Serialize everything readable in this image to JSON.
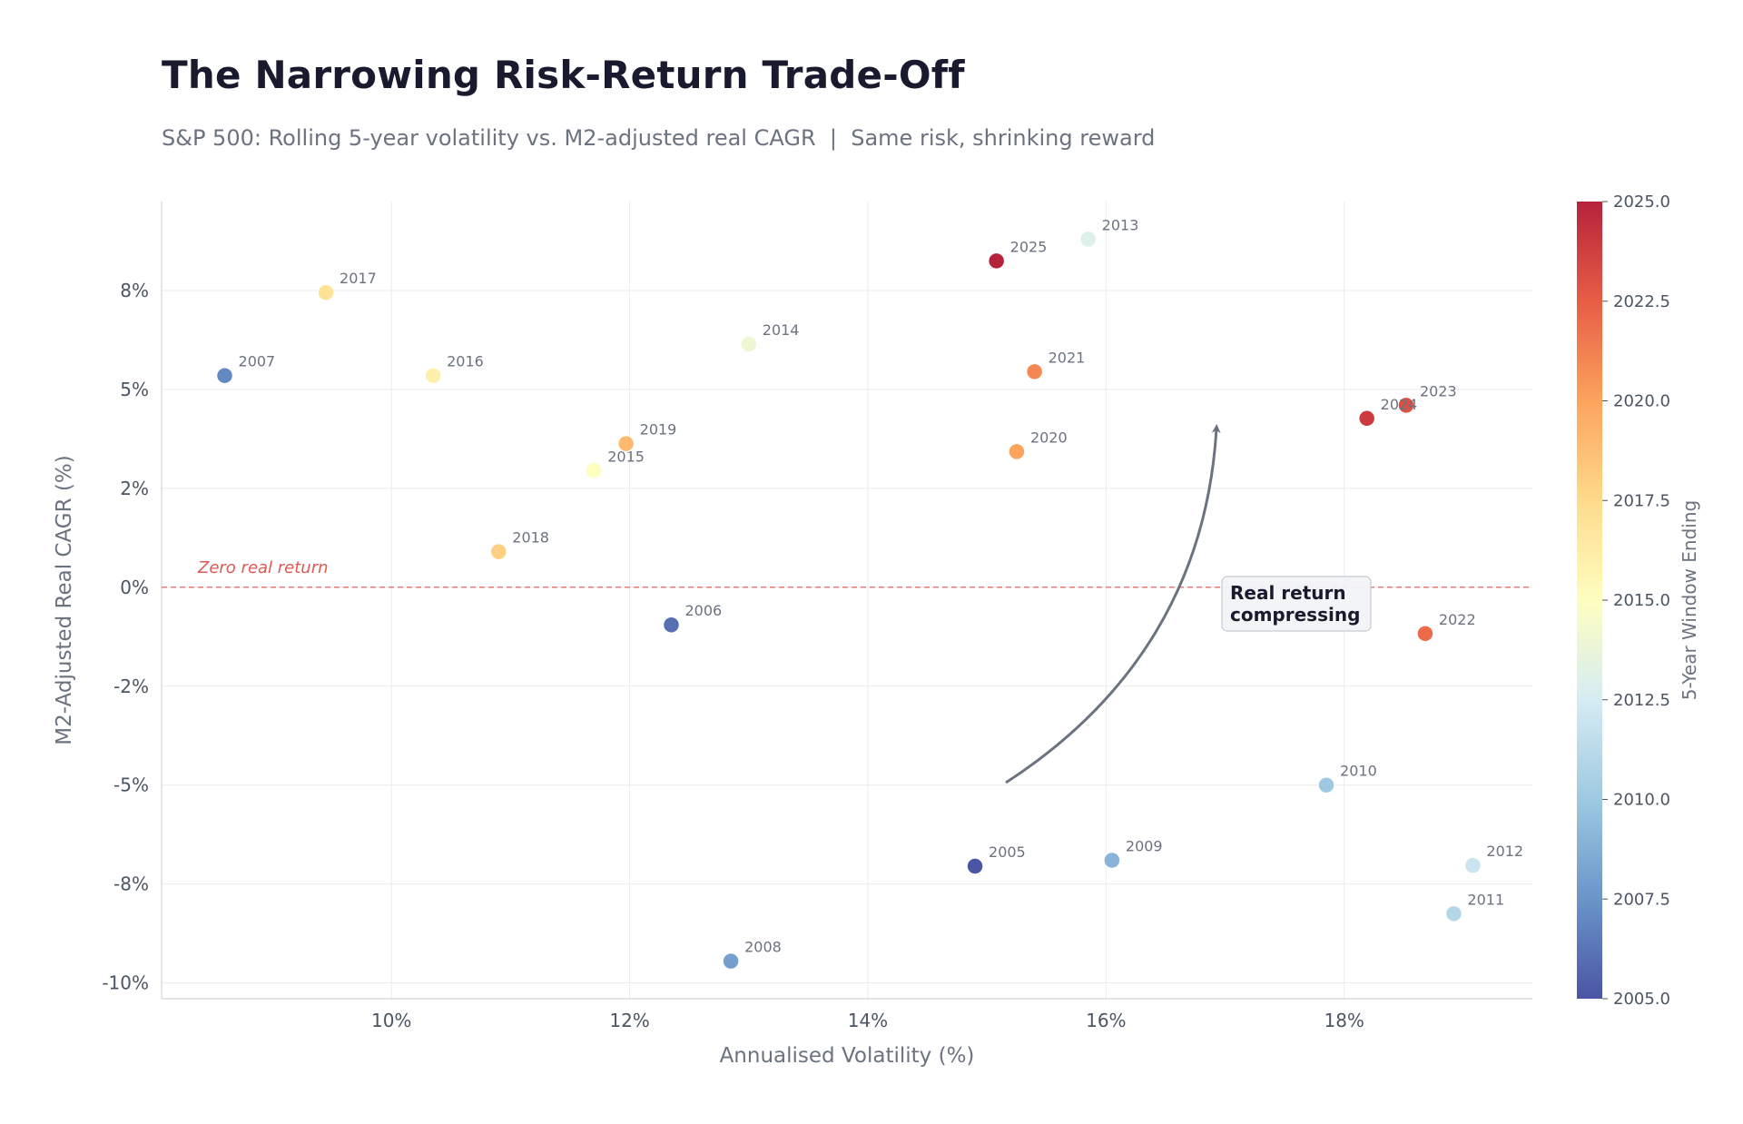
{
  "title": "The Narrowing Risk-Return Trade-Off",
  "subtitle": "S&P 500: Rolling 5-year volatility vs. M2-adjusted real CAGR  |  Same risk, shrinking reward",
  "chart_data": {
    "type": "scatter",
    "xlabel": "Annualised Volatility (%)",
    "ylabel": "M2-Adjusted Real CAGR (%)",
    "xlim": [
      8.07,
      19.58
    ],
    "ylim": [
      -10.4,
      9.75
    ],
    "x_ticks": [
      10,
      12,
      14,
      16,
      18
    ],
    "x_tick_labels": [
      "10%",
      "12%",
      "14%",
      "16%",
      "18%"
    ],
    "y_ticks": [
      -10,
      -7.5,
      -5,
      -2.5,
      0,
      2.5,
      5,
      7.5
    ],
    "y_tick_labels": [
      "-10%",
      "-8%",
      "-5%",
      "-2%",
      "0%",
      "2%",
      "5%",
      "8%"
    ],
    "grid": true,
    "points": [
      {
        "year": 2005,
        "label": "2005",
        "x": 14.9,
        "y": -7.05
      },
      {
        "year": 2006,
        "label": "2006",
        "x": 12.35,
        "y": -0.95
      },
      {
        "year": 2007,
        "label": "2007",
        "x": 8.6,
        "y": 5.35
      },
      {
        "year": 2008,
        "label": "2008",
        "x": 12.85,
        "y": -9.45
      },
      {
        "year": 2009,
        "label": "2009",
        "x": 16.05,
        "y": -6.9
      },
      {
        "year": 2010,
        "label": "2010",
        "x": 17.85,
        "y": -5.0
      },
      {
        "year": 2011,
        "label": "2011",
        "x": 18.92,
        "y": -8.25
      },
      {
        "year": 2012,
        "label": "2012",
        "x": 19.08,
        "y": -7.03
      },
      {
        "year": 2013,
        "label": "2013",
        "x": 15.85,
        "y": 8.8
      },
      {
        "year": 2014,
        "label": "2014",
        "x": 13.0,
        "y": 6.15
      },
      {
        "year": 2015,
        "label": "2015",
        "x": 11.7,
        "y": 2.95
      },
      {
        "year": 2016,
        "label": "2016",
        "x": 10.35,
        "y": 5.35
      },
      {
        "year": 2017,
        "label": "2017",
        "x": 9.45,
        "y": 7.45
      },
      {
        "year": 2018,
        "label": "2018",
        "x": 10.9,
        "y": 0.9
      },
      {
        "year": 2019,
        "label": "2019",
        "x": 11.97,
        "y": 3.63
      },
      {
        "year": 2020,
        "label": "2020",
        "x": 15.25,
        "y": 3.43
      },
      {
        "year": 2021,
        "label": "2021",
        "x": 15.4,
        "y": 5.45
      },
      {
        "year": 2022,
        "label": "2022",
        "x": 18.68,
        "y": -1.17
      },
      {
        "year": 2023,
        "label": "2023",
        "x": 18.52,
        "y": 4.6
      },
      {
        "year": 2024,
        "label": "2024",
        "x": 18.19,
        "y": 4.27
      },
      {
        "year": 2025,
        "label": "2025",
        "x": 15.08,
        "y": 8.25
      }
    ],
    "reference_line": {
      "y": 0,
      "label": "Zero real return",
      "color": "#e05a55"
    },
    "annotation": {
      "line1": "Real return",
      "line2": "compressing"
    },
    "colorbar": {
      "label": "5-Year Window Ending",
      "min": 2005.0,
      "max": 2025.0,
      "ticks": [
        "2005.0",
        "2007.5",
        "2010.0",
        "2012.5",
        "2015.0",
        "2017.5",
        "2020.0",
        "2022.5",
        "2025.0"
      ],
      "colormap": "RdYlBu_r",
      "colors": [
        "#4a55a4",
        "#6a95c9",
        "#9ec9e1",
        "#d5ecf3",
        "#fefec0",
        "#fedb8b",
        "#fca35c",
        "#e75d45",
        "#b6223b"
      ]
    }
  }
}
